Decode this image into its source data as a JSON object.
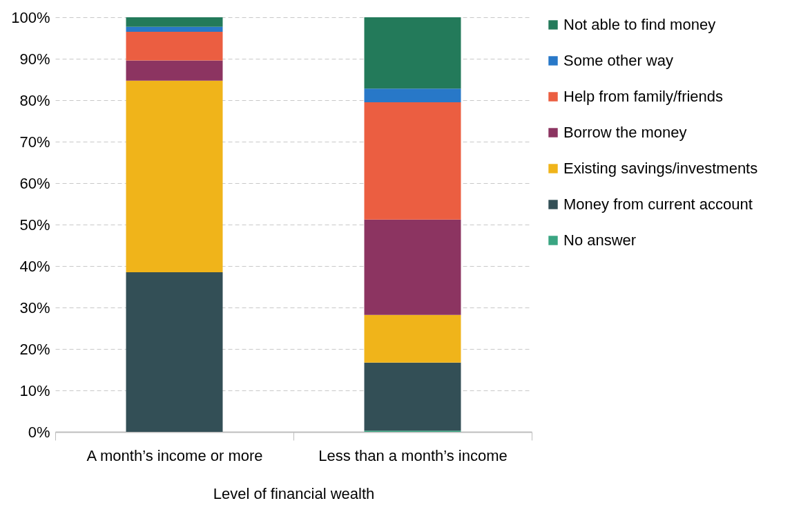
{
  "chart_data": {
    "type": "bar",
    "stacked": true,
    "xlabel": "Level of financial wealth",
    "categories": [
      "A month’s income or more",
      "Less than a month’s income"
    ],
    "series": [
      {
        "name": "No answer",
        "color": "#3aa582",
        "values": [
          0,
          0.3
        ]
      },
      {
        "name": "Money from current account",
        "color": "#334f56",
        "values": [
          38.5,
          16.4
        ]
      },
      {
        "name": "Existing savings/investments",
        "color": "#f0b41a",
        "values": [
          46.2,
          11.5
        ]
      },
      {
        "name": "Borrow the money",
        "color": "#8c3461",
        "values": [
          4.9,
          23.0
        ]
      },
      {
        "name": "Help from family/friends",
        "color": "#eb5e41",
        "values": [
          6.9,
          28.3
        ]
      },
      {
        "name": "Some other way",
        "color": "#2878c8",
        "values": [
          1.2,
          3.3
        ]
      },
      {
        "name": "Not able to find money",
        "color": "#237a5a",
        "values": [
          2.3,
          17.2
        ]
      }
    ],
    "ylim": [
      0,
      100
    ],
    "yticks": [
      {
        "value": 0,
        "label": "0%"
      },
      {
        "value": 10,
        "label": "10%"
      },
      {
        "value": 20,
        "label": "20%"
      },
      {
        "value": 30,
        "label": "30%"
      },
      {
        "value": 40,
        "label": "40%"
      },
      {
        "value": 50,
        "label": "50%"
      },
      {
        "value": 60,
        "label": "60%"
      },
      {
        "value": 70,
        "label": "70%"
      },
      {
        "value": 80,
        "label": "80%"
      },
      {
        "value": 90,
        "label": "90%"
      },
      {
        "value": 100,
        "label": "100%"
      }
    ],
    "grid": "y",
    "legend": "right"
  }
}
